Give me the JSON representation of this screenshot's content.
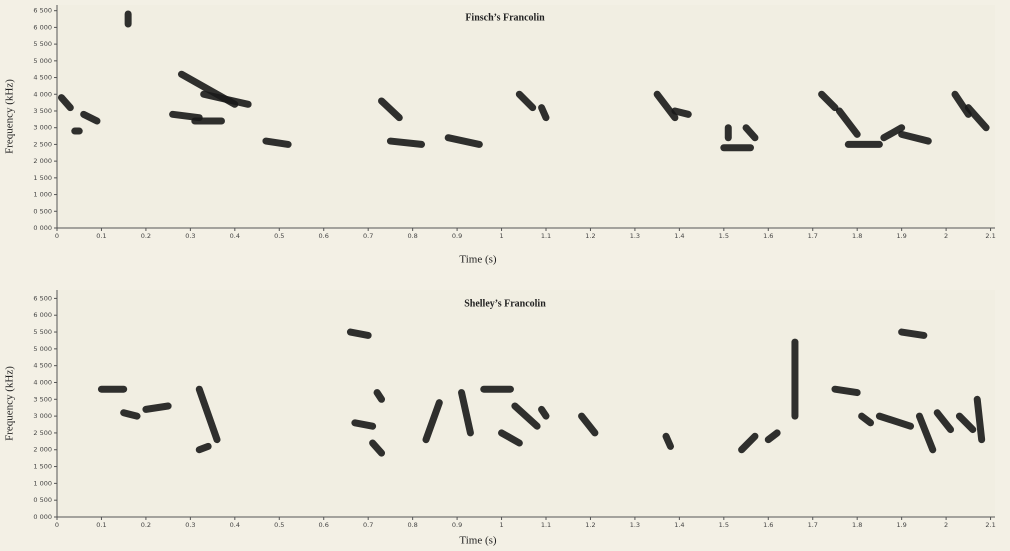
{
  "chart_data": [
    {
      "type": "spectrogram",
      "title": "Finsch’s Francolin",
      "x_label": "Time (s)",
      "y_label": "Frequency (kHz)",
      "color": "#1a1a1a",
      "xlim": [
        0,
        2.11
      ],
      "xticks": [
        0,
        0.1,
        0.2,
        0.3,
        0.4,
        0.5,
        0.6,
        0.7,
        0.8,
        0.9,
        1,
        1.1,
        1.2,
        1.3,
        1.4,
        1.5,
        1.6,
        1.7,
        1.8,
        1.9,
        2,
        2.1
      ],
      "ylim": [
        0,
        6670
      ],
      "yticks": [
        {
          "value": 0,
          "label": "0 000"
        },
        {
          "value": 500,
          "label": "0 500"
        },
        {
          "value": 1000,
          "label": "1 000"
        },
        {
          "value": 1500,
          "label": "1 500"
        },
        {
          "value": 2000,
          "label": "2 000"
        },
        {
          "value": 2500,
          "label": "2 500"
        },
        {
          "value": 3000,
          "label": "3 000"
        },
        {
          "value": 3500,
          "label": "3 500"
        },
        {
          "value": 4000,
          "label": "4 000"
        },
        {
          "value": 4500,
          "label": "4 500"
        },
        {
          "value": 5000,
          "label": "5 000"
        },
        {
          "value": 5500,
          "label": "5 500"
        },
        {
          "value": 6000,
          "label": "6 000"
        },
        {
          "value": 6500,
          "label": "6 500"
        }
      ],
      "traces": [
        {
          "x": [
            0.01,
            0.03
          ],
          "y": [
            3900,
            3600
          ]
        },
        {
          "x": [
            0.04,
            0.05
          ],
          "y": [
            2900,
            2900
          ]
        },
        {
          "x": [
            0.06,
            0.09
          ],
          "y": [
            3400,
            3200
          ]
        },
        {
          "x": [
            0.16,
            0.16
          ],
          "y": [
            6400,
            6100
          ]
        },
        {
          "x": [
            0.26,
            0.32
          ],
          "y": [
            3400,
            3300
          ]
        },
        {
          "x": [
            0.28,
            0.4
          ],
          "y": [
            4600,
            3700
          ]
        },
        {
          "x": [
            0.33,
            0.43
          ],
          "y": [
            4000,
            3700
          ]
        },
        {
          "x": [
            0.31,
            0.37
          ],
          "y": [
            3200,
            3200
          ]
        },
        {
          "x": [
            0.47,
            0.52
          ],
          "y": [
            2600,
            2500
          ]
        },
        {
          "x": [
            0.73,
            0.77
          ],
          "y": [
            3800,
            3300
          ]
        },
        {
          "x": [
            0.75,
            0.82
          ],
          "y": [
            2600,
            2500
          ]
        },
        {
          "x": [
            0.88,
            0.95
          ],
          "y": [
            2700,
            2500
          ]
        },
        {
          "x": [
            1.04,
            1.07
          ],
          "y": [
            4000,
            3600
          ]
        },
        {
          "x": [
            1.09,
            1.1
          ],
          "y": [
            3600,
            3300
          ]
        },
        {
          "x": [
            1.35,
            1.39
          ],
          "y": [
            4000,
            3300
          ]
        },
        {
          "x": [
            1.39,
            1.42
          ],
          "y": [
            3500,
            3400
          ]
        },
        {
          "x": [
            1.5,
            1.56
          ],
          "y": [
            2400,
            2400
          ]
        },
        {
          "x": [
            1.51,
            1.51
          ],
          "y": [
            3000,
            2700
          ]
        },
        {
          "x": [
            1.55,
            1.57
          ],
          "y": [
            3000,
            2700
          ]
        },
        {
          "x": [
            1.72,
            1.75
          ],
          "y": [
            4000,
            3600
          ]
        },
        {
          "x": [
            1.76,
            1.8
          ],
          "y": [
            3500,
            2800
          ]
        },
        {
          "x": [
            1.78,
            1.85
          ],
          "y": [
            2500,
            2500
          ]
        },
        {
          "x": [
            1.86,
            1.9
          ],
          "y": [
            2700,
            3000
          ]
        },
        {
          "x": [
            1.9,
            1.96
          ],
          "y": [
            2800,
            2600
          ]
        },
        {
          "x": [
            2.02,
            2.05
          ],
          "y": [
            4000,
            3400
          ]
        },
        {
          "x": [
            2.05,
            2.09
          ],
          "y": [
            3600,
            3000
          ]
        }
      ]
    },
    {
      "type": "spectrogram",
      "title": "Shelley’s Francolin",
      "x_label": "Time (s)",
      "y_label": "Frequency (kHz)",
      "color": "#1a1a1a",
      "xlim": [
        0,
        2.11
      ],
      "xticks": [
        0,
        0.1,
        0.2,
        0.3,
        0.4,
        0.5,
        0.6,
        0.7,
        0.8,
        0.9,
        1,
        1.1,
        1.2,
        1.3,
        1.4,
        1.5,
        1.6,
        1.7,
        1.8,
        1.9,
        2,
        2.1
      ],
      "ylim": [
        0,
        6750
      ],
      "yticks": [
        {
          "value": 0,
          "label": "0 000"
        },
        {
          "value": 500,
          "label": "0 500"
        },
        {
          "value": 1000,
          "label": "1 000"
        },
        {
          "value": 1500,
          "label": "1 500"
        },
        {
          "value": 2000,
          "label": "2 000"
        },
        {
          "value": 2500,
          "label": "2 500"
        },
        {
          "value": 3000,
          "label": "3 000"
        },
        {
          "value": 3500,
          "label": "3 500"
        },
        {
          "value": 4000,
          "label": "4 000"
        },
        {
          "value": 4500,
          "label": "4 500"
        },
        {
          "value": 5000,
          "label": "5 000"
        },
        {
          "value": 5500,
          "label": "5 500"
        },
        {
          "value": 6000,
          "label": "6 000"
        },
        {
          "value": 6500,
          "label": "6 500"
        }
      ],
      "traces": [
        {
          "x": [
            0.1,
            0.15
          ],
          "y": [
            3800,
            3800
          ]
        },
        {
          "x": [
            0.15,
            0.18
          ],
          "y": [
            3100,
            3000
          ]
        },
        {
          "x": [
            0.2,
            0.25
          ],
          "y": [
            3200,
            3300
          ]
        },
        {
          "x": [
            0.32,
            0.36
          ],
          "y": [
            3800,
            2300
          ]
        },
        {
          "x": [
            0.32,
            0.34
          ],
          "y": [
            2000,
            2100
          ]
        },
        {
          "x": [
            0.67,
            0.71
          ],
          "y": [
            2800,
            2700
          ]
        },
        {
          "x": [
            0.72,
            0.73
          ],
          "y": [
            3700,
            3500
          ]
        },
        {
          "x": [
            0.71,
            0.73
          ],
          "y": [
            2200,
            1900
          ]
        },
        {
          "x": [
            0.83,
            0.86
          ],
          "y": [
            2300,
            3400
          ]
        },
        {
          "x": [
            0.91,
            0.93
          ],
          "y": [
            3700,
            2500
          ]
        },
        {
          "x": [
            0.96,
            1.02
          ],
          "y": [
            3800,
            3800
          ]
        },
        {
          "x": [
            1.0,
            1.04
          ],
          "y": [
            2500,
            2200
          ]
        },
        {
          "x": [
            1.03,
            1.08
          ],
          "y": [
            3300,
            2700
          ]
        },
        {
          "x": [
            1.09,
            1.1
          ],
          "y": [
            3200,
            3000
          ]
        },
        {
          "x": [
            1.18,
            1.21
          ],
          "y": [
            3000,
            2500
          ]
        },
        {
          "x": [
            1.37,
            1.38
          ],
          "y": [
            2400,
            2100
          ]
        },
        {
          "x": [
            1.54,
            1.57
          ],
          "y": [
            2000,
            2400
          ]
        },
        {
          "x": [
            1.6,
            1.62
          ],
          "y": [
            2300,
            2500
          ]
        },
        {
          "x": [
            1.66,
            1.66
          ],
          "y": [
            5200,
            3000
          ]
        },
        {
          "x": [
            1.75,
            1.8
          ],
          "y": [
            3800,
            3700
          ]
        },
        {
          "x": [
            1.81,
            1.83
          ],
          "y": [
            3000,
            2800
          ]
        },
        {
          "x": [
            1.85,
            1.92
          ],
          "y": [
            3000,
            2700
          ]
        },
        {
          "x": [
            1.94,
            1.97
          ],
          "y": [
            3000,
            2000
          ]
        },
        {
          "x": [
            1.98,
            2.01
          ],
          "y": [
            3100,
            2600
          ]
        },
        {
          "x": [
            2.03,
            2.06
          ],
          "y": [
            3000,
            2600
          ]
        },
        {
          "x": [
            2.07,
            2.08
          ],
          "y": [
            3500,
            2300
          ]
        },
        {
          "x": [
            0.66,
            0.7
          ],
          "y": [
            5500,
            5400
          ]
        },
        {
          "x": [
            1.9,
            1.95
          ],
          "y": [
            5500,
            5400
          ]
        }
      ]
    }
  ]
}
